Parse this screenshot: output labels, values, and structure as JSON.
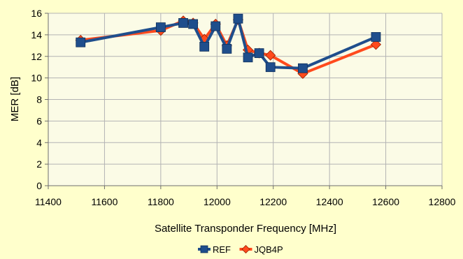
{
  "chart_data": {
    "type": "line",
    "title": "",
    "xlabel": "Satellite Transponder Frequency [MHz]",
    "ylabel": "MER [dB]",
    "xlim": [
      11400,
      12800
    ],
    "ylim": [
      0,
      16
    ],
    "xticks": [
      11400,
      11600,
      11800,
      12000,
      12200,
      12400,
      12600,
      12800
    ],
    "yticks": [
      0,
      2,
      4,
      6,
      8,
      10,
      12,
      14,
      16
    ],
    "grid": true,
    "legend_position": "bottom",
    "series": [
      {
        "name": "REF",
        "color": "#1f4e8c",
        "marker": "square",
        "x": [
          11515,
          11800,
          11880,
          11915,
          11955,
          11995,
          12035,
          12075,
          12110,
          12150,
          12190,
          12305,
          12565
        ],
        "y": [
          13.3,
          14.7,
          15.1,
          15.0,
          12.9,
          14.8,
          12.7,
          15.5,
          11.9,
          12.3,
          11.0,
          10.9,
          13.8
        ]
      },
      {
        "name": "JQB4P",
        "color": "#ff4a1c",
        "marker": "diamond",
        "x": [
          11515,
          11800,
          11880,
          11915,
          11955,
          11995,
          12035,
          12075,
          12110,
          12150,
          12190,
          12305,
          12565
        ],
        "y": [
          13.5,
          14.4,
          15.3,
          15.1,
          13.6,
          15.0,
          13.0,
          15.4,
          12.6,
          12.3,
          12.1,
          10.4,
          13.1
        ]
      }
    ]
  }
}
